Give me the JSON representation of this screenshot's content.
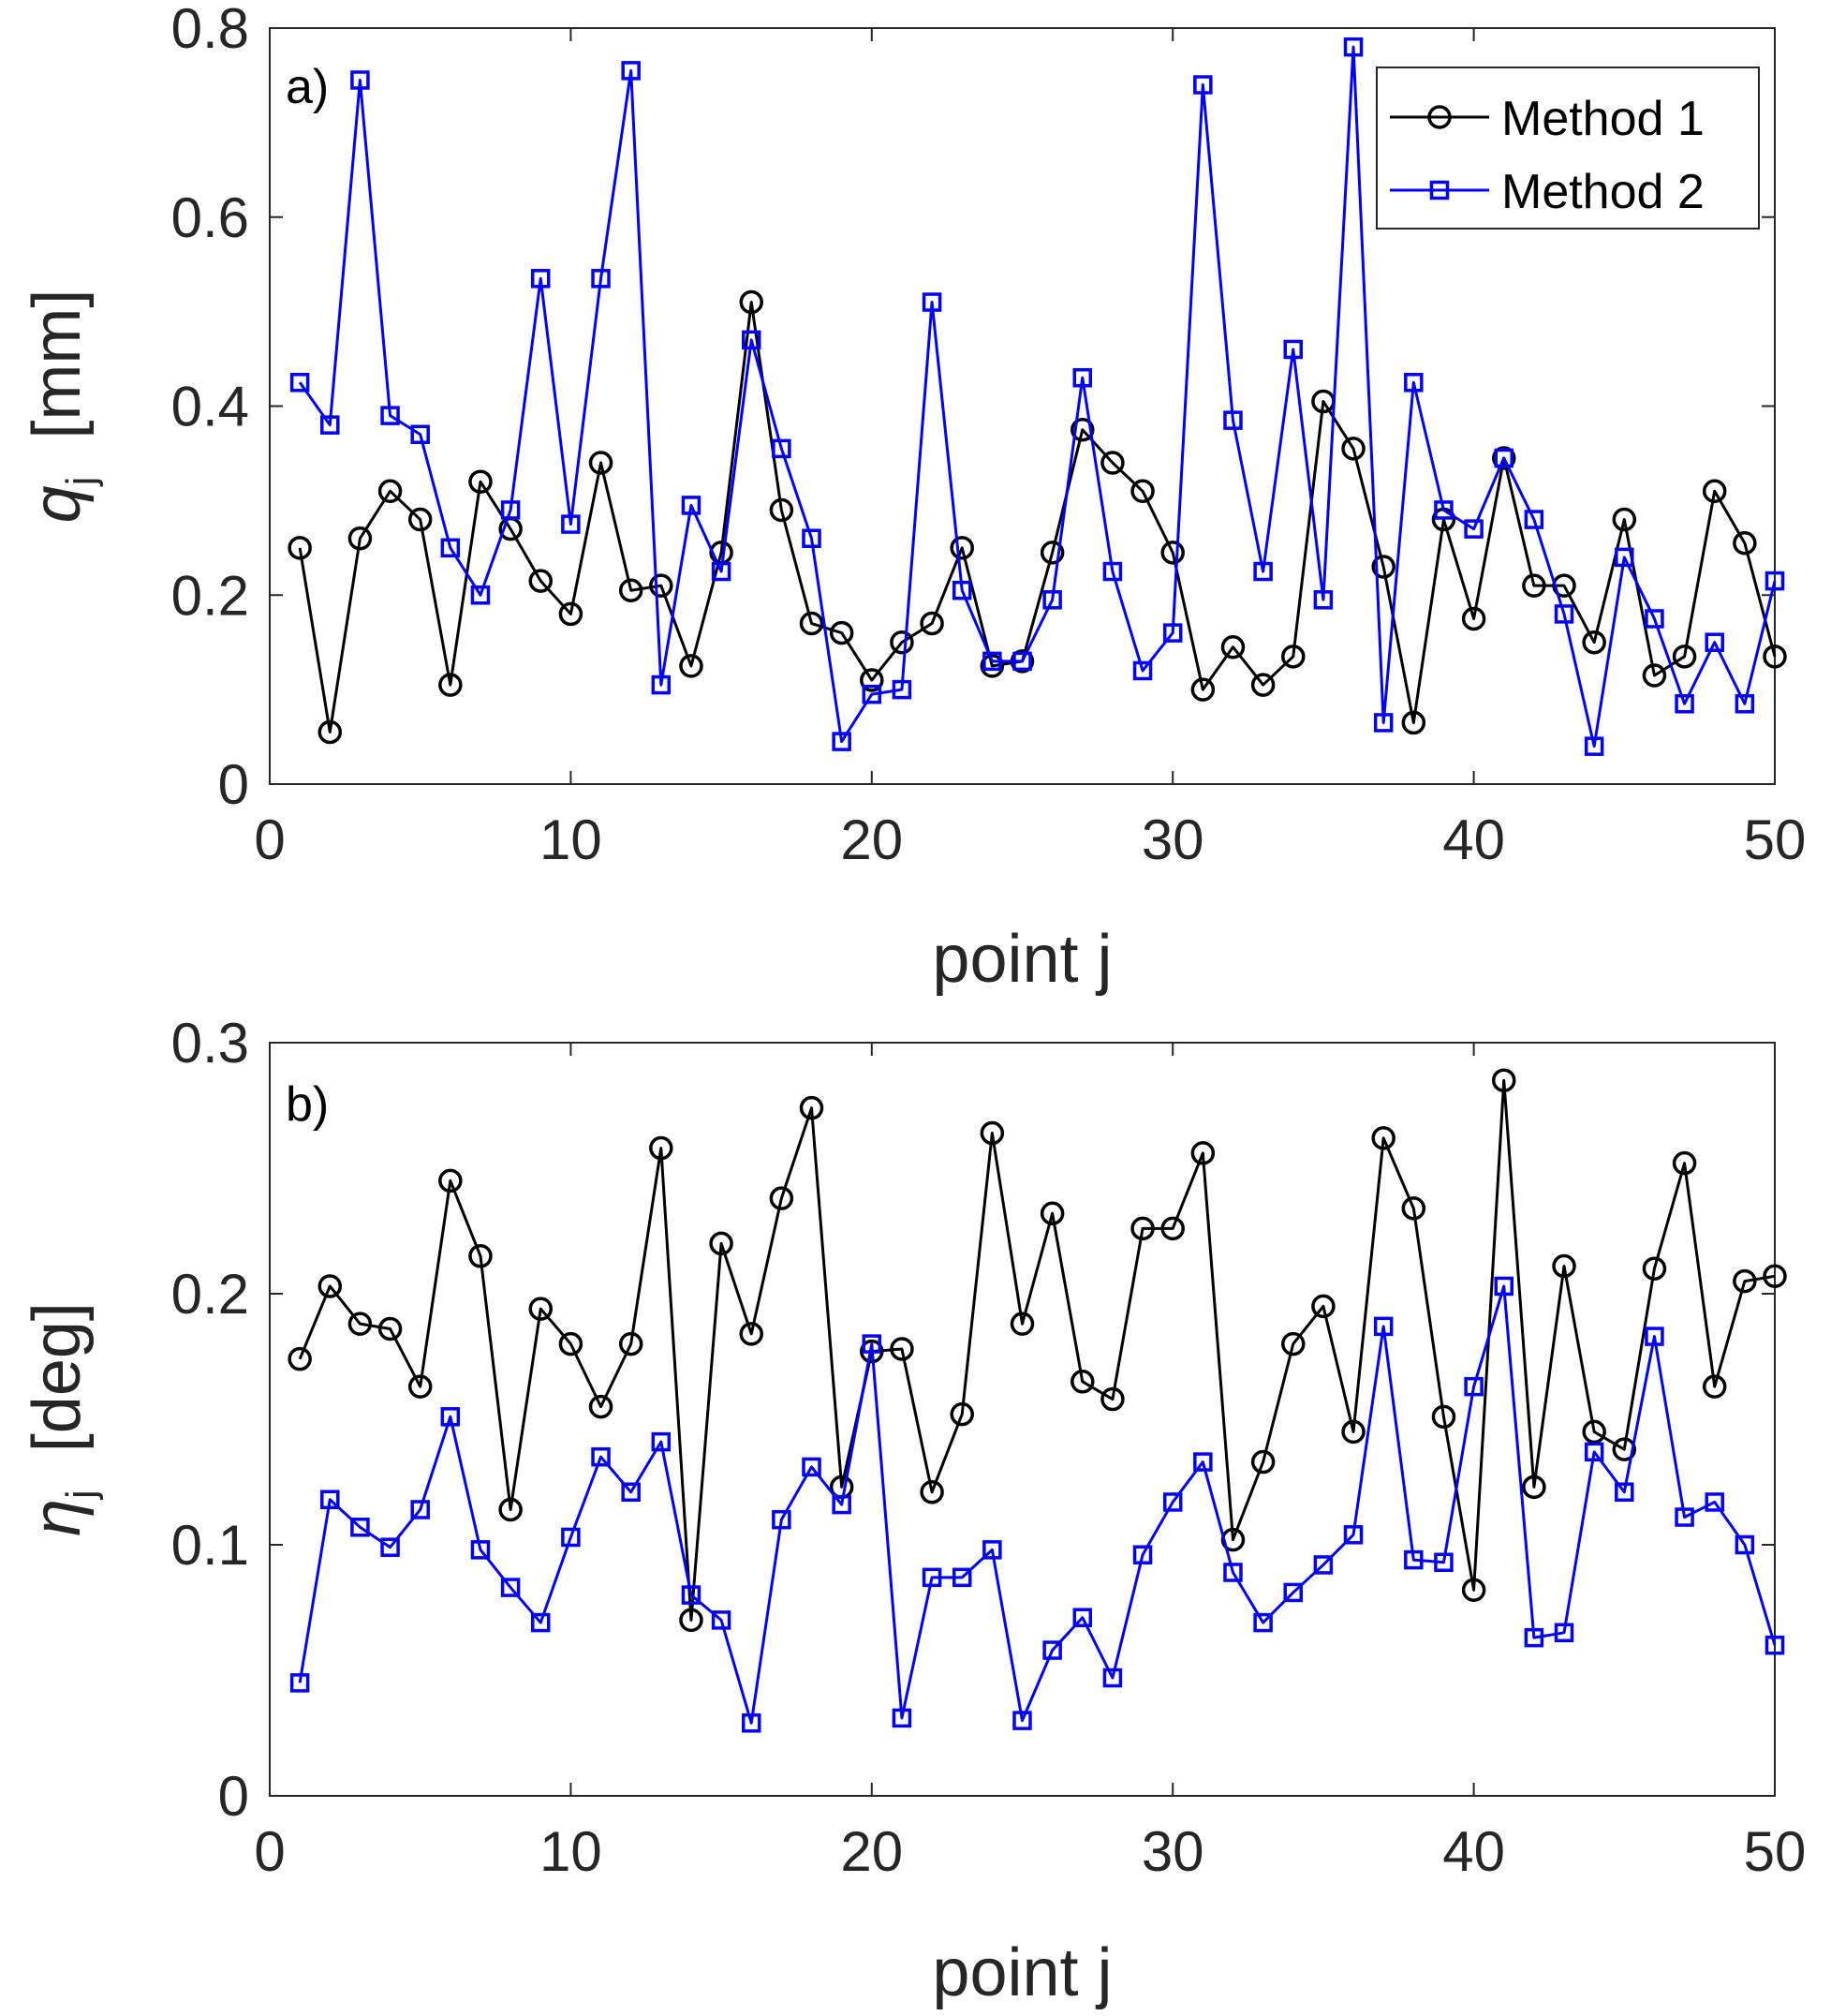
{
  "colors": {
    "method1": "#000000",
    "method2": "#0000ff",
    "axis": "#262626",
    "background": "#ffffff"
  },
  "legend": {
    "placement": "top-right",
    "entries": [
      "Method 1",
      "Method 2"
    ]
  },
  "chart_data": [
    {
      "type": "line",
      "panel_label": "a)",
      "xlabel": "point j",
      "ylabel": "q",
      "ylabel_sub": "j",
      "ylabel_unit": "[mm]",
      "xlim": [
        0,
        50
      ],
      "ylim": [
        0,
        0.8
      ],
      "xticks": [
        0,
        10,
        20,
        30,
        40,
        50
      ],
      "yticks": [
        0,
        0.2,
        0.4,
        0.6,
        0.8
      ],
      "xtick_labels": [
        "0",
        "10",
        "20",
        "30",
        "40",
        "50"
      ],
      "ytick_labels": [
        "0",
        "0.2",
        "0.4",
        "0.6",
        "0.8"
      ],
      "grid": false,
      "legend": "top-right",
      "x": [
        1,
        2,
        3,
        4,
        5,
        6,
        7,
        8,
        9,
        10,
        11,
        12,
        13,
        14,
        15,
        16,
        17,
        18,
        19,
        20,
        21,
        22,
        23,
        24,
        25,
        26,
        27,
        28,
        29,
        30,
        31,
        32,
        33,
        34,
        35,
        36,
        37,
        38,
        39,
        40,
        41,
        42,
        43,
        44,
        45,
        46,
        47,
        48,
        49,
        50
      ],
      "series": [
        {
          "name": "Method 1",
          "marker": "circle",
          "color": "#000000",
          "values": [
            0.25,
            0.055,
            0.26,
            0.31,
            0.28,
            0.105,
            0.32,
            0.27,
            0.215,
            0.18,
            0.34,
            0.205,
            0.21,
            0.125,
            0.245,
            0.51,
            0.29,
            0.17,
            0.16,
            0.11,
            0.15,
            0.17,
            0.25,
            0.125,
            0.13,
            0.245,
            0.375,
            0.34,
            0.31,
            0.245,
            0.1,
            0.145,
            0.105,
            0.135,
            0.405,
            0.355,
            0.23,
            0.065,
            0.28,
            0.175,
            0.345,
            0.21,
            0.21,
            0.15,
            0.28,
            0.115,
            0.135,
            0.31,
            0.255,
            0.135
          ]
        },
        {
          "name": "Method 2",
          "marker": "square",
          "color": "#0000ff",
          "values": [
            0.425,
            0.38,
            0.745,
            0.39,
            0.37,
            0.25,
            0.2,
            0.29,
            0.535,
            0.275,
            0.535,
            0.755,
            0.105,
            0.295,
            0.225,
            0.47,
            0.355,
            0.26,
            0.045,
            0.095,
            0.1,
            0.51,
            0.205,
            0.13,
            0.13,
            0.195,
            0.43,
            0.225,
            0.12,
            0.16,
            0.74,
            0.385,
            0.225,
            0.46,
            0.195,
            0.78,
            0.065,
            0.425,
            0.29,
            0.27,
            0.345,
            0.28,
            0.18,
            0.04,
            0.24,
            0.175,
            0.085,
            0.15,
            0.085,
            0.215
          ]
        }
      ]
    },
    {
      "type": "line",
      "panel_label": "b)",
      "xlabel": "point j",
      "ylabel": "η",
      "ylabel_sub": "j",
      "ylabel_unit": "[deg]",
      "xlim": [
        0,
        50
      ],
      "ylim": [
        0,
        0.3
      ],
      "xticks": [
        0,
        10,
        20,
        30,
        40,
        50
      ],
      "yticks": [
        0,
        0.1,
        0.2,
        0.3
      ],
      "xtick_labels": [
        "0",
        "10",
        "20",
        "30",
        "40",
        "50"
      ],
      "ytick_labels": [
        "0",
        "0.1",
        "0.2",
        "0.3"
      ],
      "grid": false,
      "x": [
        1,
        2,
        3,
        4,
        5,
        6,
        7,
        8,
        9,
        10,
        11,
        12,
        13,
        14,
        15,
        16,
        17,
        18,
        19,
        20,
        21,
        22,
        23,
        24,
        25,
        26,
        27,
        28,
        29,
        30,
        31,
        32,
        33,
        34,
        35,
        36,
        37,
        38,
        39,
        40,
        41,
        42,
        43,
        44,
        45,
        46,
        47,
        48,
        49,
        50
      ],
      "series": [
        {
          "name": "Method 1",
          "marker": "circle",
          "color": "#000000",
          "values": [
            0.174,
            0.203,
            0.188,
            0.186,
            0.163,
            0.245,
            0.215,
            0.114,
            0.194,
            0.18,
            0.155,
            0.18,
            0.258,
            0.07,
            0.22,
            0.184,
            0.238,
            0.274,
            0.123,
            0.177,
            0.178,
            0.121,
            0.152,
            0.264,
            0.188,
            0.232,
            0.165,
            0.158,
            0.226,
            0.226,
            0.256,
            0.102,
            0.133,
            0.18,
            0.195,
            0.145,
            0.262,
            0.234,
            0.151,
            0.082,
            0.285,
            0.123,
            0.211,
            0.145,
            0.138,
            0.21,
            0.252,
            0.163,
            0.205,
            0.207
          ]
        },
        {
          "name": "Method 2",
          "marker": "square",
          "color": "#0000ff",
          "values": [
            0.045,
            0.118,
            0.107,
            0.099,
            0.114,
            0.151,
            0.098,
            0.083,
            0.069,
            0.103,
            0.135,
            0.121,
            0.141,
            0.08,
            0.07,
            0.029,
            0.11,
            0.131,
            0.116,
            0.18,
            0.031,
            0.087,
            0.087,
            0.098,
            0.03,
            0.058,
            0.071,
            0.047,
            0.096,
            0.117,
            0.133,
            0.089,
            0.069,
            0.081,
            0.092,
            0.104,
            0.187,
            0.094,
            0.093,
            0.163,
            0.203,
            0.063,
            0.065,
            0.137,
            0.121,
            0.183,
            0.111,
            0.117,
            0.1,
            0.06
          ]
        }
      ]
    }
  ]
}
